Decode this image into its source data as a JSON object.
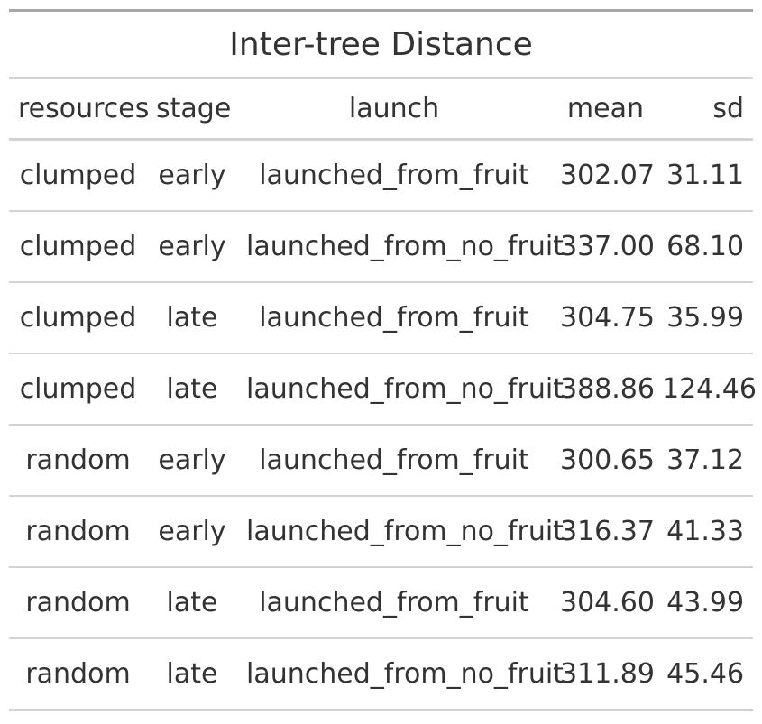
{
  "title": "Inter-tree Distance",
  "columns": [
    {
      "label": "resources",
      "align": "left"
    },
    {
      "label": "stage",
      "align": "center"
    },
    {
      "label": "launch",
      "align": "center"
    },
    {
      "label": "mean",
      "align": "right"
    },
    {
      "label": "sd",
      "align": "right"
    }
  ],
  "rows": [
    [
      "clumped",
      "early",
      "launched_from_fruit",
      "302.07",
      "31.11"
    ],
    [
      "clumped",
      "early",
      "launched_from_no_fruit",
      "337.00",
      "68.10"
    ],
    [
      "clumped",
      "late",
      "launched_from_fruit",
      "304.75",
      "35.99"
    ],
    [
      "clumped",
      "late",
      "launched_from_no_fruit",
      "388.86",
      "124.46"
    ],
    [
      "random",
      "early",
      "launched_from_fruit",
      "300.65",
      "37.12"
    ],
    [
      "random",
      "early",
      "launched_from_no_fruit",
      "316.37",
      "41.33"
    ],
    [
      "random",
      "late",
      "launched_from_fruit",
      "304.60",
      "43.99"
    ],
    [
      "random",
      "late",
      "launched_from_no_fruit",
      "311.89",
      "45.46"
    ]
  ]
}
